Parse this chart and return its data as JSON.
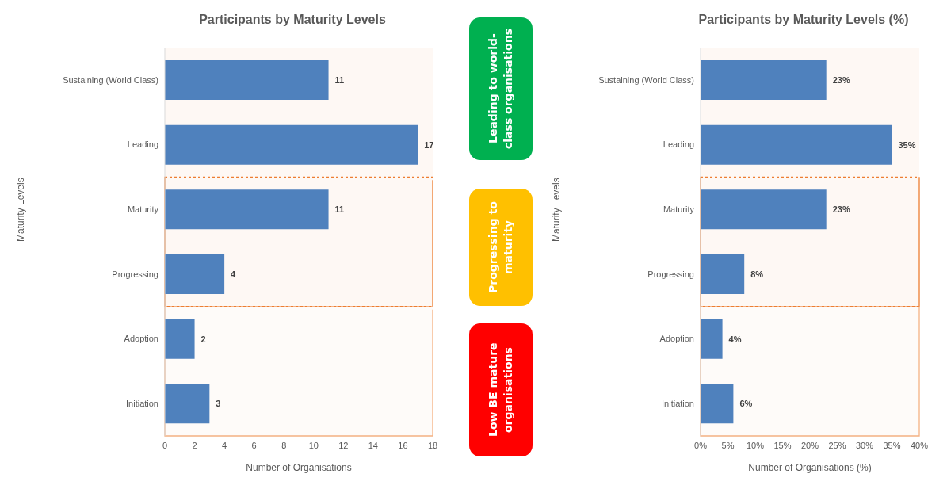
{
  "chart_data": [
    {
      "type": "bar",
      "orientation": "horizontal",
      "title": "Participants by Maturity Levels",
      "xlabel": "Number of Organisations",
      "ylabel": "Maturity  Levels",
      "categories": [
        "Sustaining (World Class)",
        "Leading",
        "Maturity",
        "Progressing",
        "Adoption",
        "Initiation"
      ],
      "values": [
        11,
        17,
        11,
        4,
        2,
        3
      ],
      "color": "#4f81bd",
      "xlim": [
        0,
        18
      ],
      "xticks": [
        0,
        2,
        4,
        6,
        8,
        10,
        12,
        14,
        16,
        18
      ],
      "data_labels": true,
      "grid": false,
      "legend": false,
      "bands": [
        {
          "axis": "y",
          "from": "Sustaining (World Class)",
          "to": "Leading",
          "color": "#ed7d31"
        },
        {
          "axis": "y",
          "from": "Maturity",
          "to": "Progressing",
          "color": "#ed7d31"
        },
        {
          "axis": "y",
          "from": "Adoption",
          "to": "Initiation",
          "color": "#f4b183"
        }
      ]
    },
    {
      "type": "other",
      "annotations": [
        "Leading to world-class organisations",
        "Progressing to maturity",
        "Low BE mature organisations"
      ],
      "colors": [
        "#00b050",
        "#ffc000",
        "#ff0000"
      ]
    },
    {
      "type": "bar",
      "orientation": "horizontal",
      "title": "Participants by Maturity Levels (%)",
      "xlabel": "Number of Organisations  (%)",
      "ylabel": "Maturity Levels",
      "categories": [
        "Sustaining (World Class)",
        "Leading",
        "Maturity",
        "Progressing",
        "Adoption",
        "Initiation"
      ],
      "values": [
        23,
        35,
        23,
        8,
        4,
        6
      ],
      "value_labels": [
        "23%",
        "35%",
        "23%",
        "8%",
        "4%",
        "6%"
      ],
      "color": "#4f81bd",
      "xlim": [
        0,
        40
      ],
      "xticks": [
        {
          "value": 0,
          "label": "0%"
        },
        {
          "value": 5,
          "label": "5%"
        },
        {
          "value": 10,
          "label": "10%"
        },
        {
          "value": 15,
          "label": "15%"
        },
        {
          "value": 20,
          "label": "20%"
        },
        {
          "value": 25,
          "label": "25%"
        },
        {
          "value": 30,
          "label": "30%"
        },
        {
          "value": 35,
          "label": "35%"
        },
        {
          "value": 40,
          "label": "40%"
        }
      ],
      "grid": false,
      "legend": false,
      "bands": [
        {
          "axis": "y",
          "from": "Sustaining (World Class)",
          "to": "Leading",
          "color": "#ed7d31"
        },
        {
          "axis": "y",
          "from": "Maturity",
          "to": "Progressing",
          "color": "#ed7d31"
        },
        {
          "axis": "y",
          "from": "Adoption",
          "to": "Initiation",
          "color": "#f4b183"
        }
      ]
    }
  ]
}
